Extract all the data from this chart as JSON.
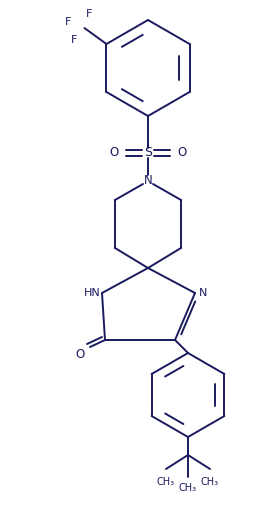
{
  "background_color": "#ffffff",
  "line_color": "#1a1a5e",
  "line_width": 1.4,
  "figsize": [
    2.61,
    5.08
  ],
  "dpi": 100,
  "xlim": [
    0,
    261
  ],
  "ylim": [
    0,
    508
  ]
}
